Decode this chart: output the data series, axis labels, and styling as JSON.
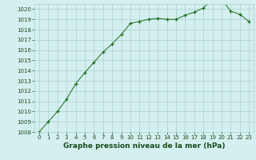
{
  "x": [
    0,
    1,
    2,
    3,
    4,
    5,
    6,
    7,
    8,
    9,
    10,
    11,
    12,
    13,
    14,
    15,
    16,
    17,
    18,
    19,
    20,
    21,
    22,
    23
  ],
  "y": [
    1008.0,
    1009.0,
    1010.0,
    1011.2,
    1012.7,
    1013.8,
    1014.8,
    1015.8,
    1016.6,
    1017.5,
    1018.6,
    1018.8,
    1019.0,
    1019.1,
    1019.0,
    1019.0,
    1019.4,
    1019.7,
    1020.1,
    1021.0,
    1021.0,
    1019.8,
    1019.5,
    1018.8
  ],
  "line_color": "#1a6b1a",
  "marker": "+",
  "bg_color": "#d4efef",
  "grid_color": "#aacece",
  "xlabel": "Graphe pression niveau de la mer (hPa)",
  "ylim": [
    1008,
    1020.5
  ],
  "xlim": [
    -0.5,
    23.5
  ],
  "yticks": [
    1008,
    1009,
    1010,
    1011,
    1012,
    1013,
    1014,
    1015,
    1016,
    1017,
    1018,
    1019,
    1020
  ],
  "xticks": [
    0,
    1,
    2,
    3,
    4,
    5,
    6,
    7,
    8,
    9,
    10,
    11,
    12,
    13,
    14,
    15,
    16,
    17,
    18,
    19,
    20,
    21,
    22,
    23
  ],
  "tick_fontsize": 5.0,
  "xlabel_fontsize": 6.5,
  "text_color": "#1a4a1a"
}
